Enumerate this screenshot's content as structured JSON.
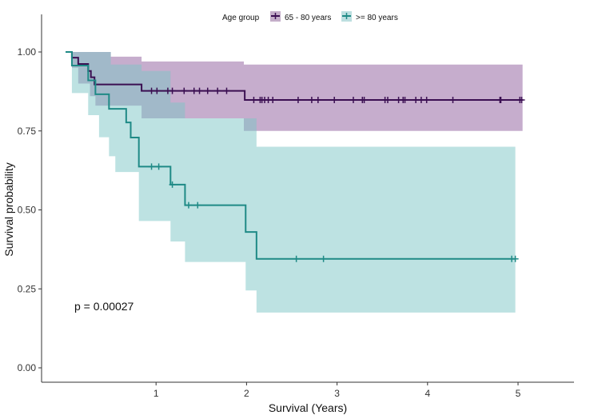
{
  "chart_data": {
    "type": "line",
    "subtype": "kaplan-meier",
    "xlabel": "Survival (Years)",
    "ylabel": "Survival probability",
    "xlim": [
      -0.27,
      5.6
    ],
    "ylim": [
      -0.045,
      1.05
    ],
    "x_ticks": [
      1,
      2,
      3,
      4,
      5
    ],
    "y_ticks": [
      0,
      0.25,
      0.5,
      0.75,
      1.0
    ],
    "y_tick_labels": [
      "0.00",
      "0.25",
      "0.50",
      "0.75",
      "1.00"
    ],
    "grid": false,
    "legend": {
      "title": "Age group",
      "position": "top"
    },
    "annotation": "p = 0.00027",
    "series": [
      {
        "name": "65 - 80 years",
        "color": "#3b0f52",
        "band_color": "#8e5c9c",
        "steps": [
          [
            0,
            1.0
          ],
          [
            0.07,
            0.982
          ],
          [
            0.14,
            0.962
          ],
          [
            0.25,
            0.94
          ],
          [
            0.28,
            0.92
          ],
          [
            0.32,
            0.897
          ],
          [
            0.84,
            0.877
          ],
          [
            1.98,
            0.848
          ],
          [
            5.05,
            0.848
          ]
        ],
        "upper": [
          [
            0,
            1.0
          ],
          [
            0.5,
            0.985
          ],
          [
            0.84,
            0.97
          ],
          [
            1.97,
            0.96
          ],
          [
            5.05,
            0.96
          ]
        ],
        "lower": [
          [
            0,
            1.0
          ],
          [
            0.07,
            0.95
          ],
          [
            0.14,
            0.9
          ],
          [
            0.27,
            0.86
          ],
          [
            0.33,
            0.83
          ],
          [
            0.84,
            0.79
          ],
          [
            1.97,
            0.75
          ],
          [
            5.05,
            0.75
          ]
        ],
        "censored": [
          0.95,
          1.01,
          1.13,
          1.18,
          1.31,
          1.42,
          1.48,
          1.57,
          1.68,
          1.78,
          2.08,
          2.15,
          2.17,
          2.2,
          2.24,
          2.29,
          2.57,
          2.72,
          2.79,
          2.97,
          3.18,
          3.28,
          3.3,
          3.53,
          3.56,
          3.68,
          3.73,
          3.75,
          3.87,
          3.93,
          3.99,
          4.28,
          4.8,
          4.81,
          5.02,
          5.04
        ]
      },
      {
        "name": ">= 80 years",
        "color": "#1f8a86",
        "band_color": "#7cc6c6",
        "steps": [
          [
            0,
            1.0
          ],
          [
            0.07,
            0.957
          ],
          [
            0.25,
            0.91
          ],
          [
            0.33,
            0.866
          ],
          [
            0.48,
            0.82
          ],
          [
            0.67,
            0.777
          ],
          [
            0.72,
            0.729
          ],
          [
            0.81,
            0.637
          ],
          [
            1.16,
            0.58
          ],
          [
            1.32,
            0.515
          ],
          [
            1.99,
            0.43
          ],
          [
            2.11,
            0.345
          ],
          [
            4.97,
            0.345
          ]
        ],
        "upper": [
          [
            0,
            1.0
          ],
          [
            0.5,
            0.96
          ],
          [
            0.84,
            0.94
          ],
          [
            1.16,
            0.84
          ],
          [
            1.32,
            0.79
          ],
          [
            2.11,
            0.7
          ],
          [
            4.97,
            0.7
          ]
        ],
        "lower": [
          [
            0,
            1.0
          ],
          [
            0.07,
            0.87
          ],
          [
            0.25,
            0.8
          ],
          [
            0.37,
            0.73
          ],
          [
            0.48,
            0.67
          ],
          [
            0.55,
            0.62
          ],
          [
            0.81,
            0.465
          ],
          [
            1.16,
            0.4
          ],
          [
            1.32,
            0.335
          ],
          [
            1.99,
            0.245
          ],
          [
            2.11,
            0.175
          ],
          [
            4.97,
            0.175
          ]
        ],
        "censored": [
          0.95,
          1.03,
          1.18,
          1.36,
          1.46,
          2.55,
          2.85,
          4.93,
          4.97
        ]
      }
    ]
  }
}
